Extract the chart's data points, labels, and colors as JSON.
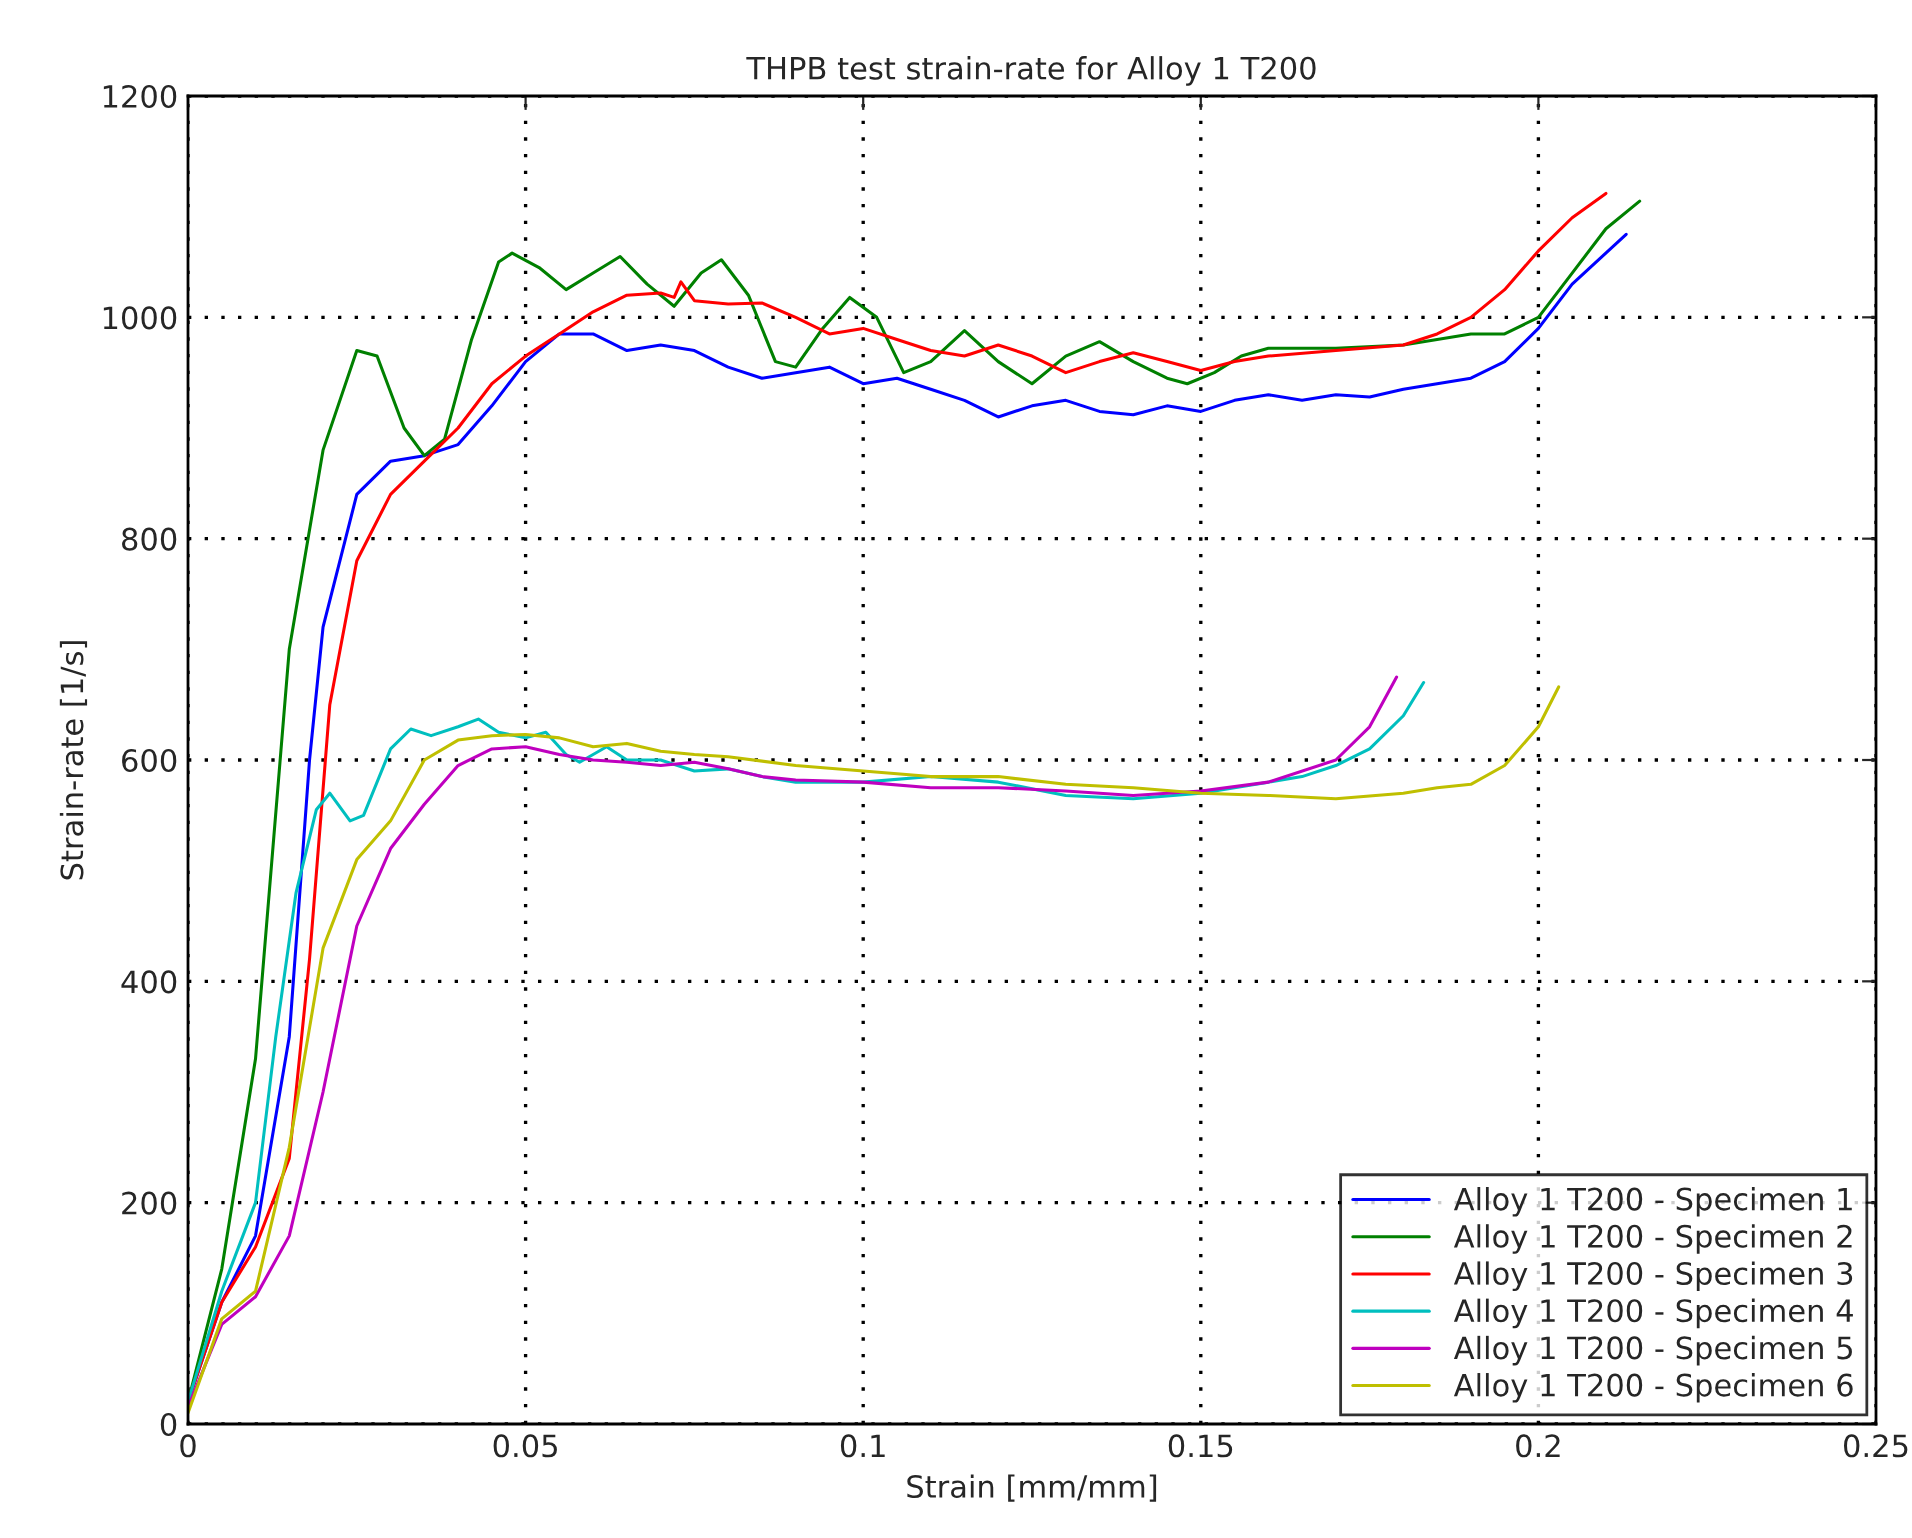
{
  "chart_data": {
    "type": "line",
    "title": "THPB test strain-rate for Alloy 1 T200",
    "xlabel": "Strain [mm/mm]",
    "ylabel": "Strain-rate [1/s]",
    "xlim": [
      0,
      0.25
    ],
    "xticks": [
      0,
      0.05,
      0.1,
      0.15,
      0.2,
      0.25
    ],
    "ylim": [
      0,
      1200
    ],
    "yticks": [
      0,
      200,
      400,
      600,
      800,
      1000,
      1200
    ],
    "grid": true,
    "legend": "bottom right",
    "line_style": "solid",
    "marker": "none",
    "series": [
      {
        "name": "Alloy 1 T200 - Specimen 1",
        "color": "#0000ff",
        "x": [
          0,
          0.005,
          0.01,
          0.015,
          0.018,
          0.02,
          0.025,
          0.03,
          0.035,
          0.04,
          0.045,
          0.05,
          0.055,
          0.06,
          0.065,
          0.07,
          0.075,
          0.08,
          0.085,
          0.09,
          0.095,
          0.1,
          0.105,
          0.11,
          0.115,
          0.12,
          0.125,
          0.13,
          0.135,
          0.14,
          0.145,
          0.15,
          0.155,
          0.16,
          0.165,
          0.17,
          0.175,
          0.18,
          0.185,
          0.19,
          0.195,
          0.2,
          0.205,
          0.213
        ],
        "values": [
          20,
          110,
          170,
          350,
          600,
          720,
          840,
          870,
          875,
          885,
          920,
          960,
          985,
          985,
          970,
          975,
          970,
          955,
          945,
          950,
          955,
          940,
          945,
          935,
          925,
          910,
          920,
          925,
          915,
          912,
          920,
          915,
          925,
          930,
          925,
          930,
          928,
          935,
          940,
          945,
          960,
          990,
          1030,
          1075
        ]
      },
      {
        "name": "Alloy 1 T200 - Specimen 2",
        "color": "#008000",
        "x": [
          0,
          0.005,
          0.01,
          0.015,
          0.02,
          0.025,
          0.028,
          0.032,
          0.035,
          0.038,
          0.042,
          0.046,
          0.048,
          0.052,
          0.056,
          0.06,
          0.064,
          0.068,
          0.072,
          0.076,
          0.079,
          0.083,
          0.087,
          0.09,
          0.094,
          0.098,
          0.102,
          0.106,
          0.11,
          0.115,
          0.12,
          0.125,
          0.13,
          0.135,
          0.14,
          0.145,
          0.148,
          0.152,
          0.156,
          0.16,
          0.17,
          0.18,
          0.185,
          0.19,
          0.195,
          0.2,
          0.205,
          0.21,
          0.215
        ],
        "values": [
          20,
          140,
          330,
          700,
          880,
          970,
          965,
          900,
          875,
          890,
          980,
          1050,
          1058,
          1045,
          1025,
          1040,
          1055,
          1030,
          1010,
          1040,
          1052,
          1020,
          960,
          955,
          990,
          1018,
          1000,
          950,
          960,
          988,
          960,
          940,
          965,
          978,
          960,
          945,
          940,
          950,
          965,
          972,
          972,
          975,
          980,
          985,
          985,
          1000,
          1040,
          1080,
          1105
        ]
      },
      {
        "name": "Alloy 1 T200 - Specimen 3",
        "color": "#ff0000",
        "x": [
          0,
          0.005,
          0.01,
          0.015,
          0.018,
          0.021,
          0.025,
          0.03,
          0.035,
          0.04,
          0.045,
          0.05,
          0.055,
          0.06,
          0.065,
          0.07,
          0.072,
          0.073,
          0.075,
          0.08,
          0.085,
          0.09,
          0.095,
          0.1,
          0.105,
          0.11,
          0.115,
          0.12,
          0.125,
          0.13,
          0.135,
          0.14,
          0.145,
          0.15,
          0.155,
          0.16,
          0.17,
          0.18,
          0.185,
          0.19,
          0.195,
          0.2,
          0.205,
          0.21
        ],
        "values": [
          20,
          110,
          160,
          240,
          420,
          650,
          780,
          840,
          870,
          900,
          940,
          965,
          985,
          1005,
          1020,
          1022,
          1018,
          1032,
          1015,
          1012,
          1013,
          1000,
          985,
          990,
          980,
          970,
          965,
          975,
          965,
          950,
          960,
          968,
          960,
          952,
          960,
          965,
          970,
          975,
          985,
          1000,
          1025,
          1060,
          1090,
          1112
        ]
      },
      {
        "name": "Alloy 1 T200 - Specimen 4",
        "color": "#00bfbf",
        "x": [
          0,
          0.005,
          0.01,
          0.013,
          0.016,
          0.019,
          0.021,
          0.024,
          0.026,
          0.03,
          0.033,
          0.036,
          0.04,
          0.043,
          0.046,
          0.05,
          0.053,
          0.056,
          0.058,
          0.062,
          0.065,
          0.07,
          0.075,
          0.08,
          0.085,
          0.09,
          0.1,
          0.11,
          0.12,
          0.13,
          0.14,
          0.15,
          0.16,
          0.165,
          0.17,
          0.175,
          0.18,
          0.183
        ],
        "values": [
          20,
          120,
          200,
          350,
          480,
          555,
          570,
          545,
          550,
          610,
          628,
          622,
          630,
          637,
          625,
          620,
          625,
          605,
          598,
          612,
          600,
          600,
          590,
          592,
          585,
          580,
          580,
          585,
          580,
          568,
          565,
          570,
          580,
          585,
          595,
          610,
          640,
          670
        ]
      },
      {
        "name": "Alloy 1 T200 - Specimen 5",
        "color": "#bf00bf",
        "x": [
          0,
          0.005,
          0.01,
          0.015,
          0.02,
          0.025,
          0.03,
          0.035,
          0.04,
          0.045,
          0.05,
          0.055,
          0.06,
          0.065,
          0.07,
          0.075,
          0.08,
          0.085,
          0.09,
          0.1,
          0.11,
          0.12,
          0.13,
          0.14,
          0.15,
          0.16,
          0.17,
          0.175,
          0.179
        ],
        "values": [
          15,
          90,
          115,
          170,
          300,
          450,
          520,
          560,
          595,
          610,
          612,
          605,
          600,
          598,
          595,
          598,
          592,
          585,
          582,
          580,
          575,
          575,
          572,
          568,
          572,
          580,
          600,
          630,
          675
        ]
      },
      {
        "name": "Alloy 1 T200 - Specimen 6",
        "color": "#bfbf00",
        "x": [
          0,
          0.005,
          0.01,
          0.015,
          0.02,
          0.025,
          0.03,
          0.035,
          0.04,
          0.045,
          0.05,
          0.055,
          0.06,
          0.065,
          0.07,
          0.075,
          0.08,
          0.09,
          0.1,
          0.11,
          0.12,
          0.13,
          0.14,
          0.15,
          0.16,
          0.17,
          0.18,
          0.185,
          0.19,
          0.195,
          0.2,
          0.203
        ],
        "values": [
          10,
          95,
          120,
          250,
          430,
          510,
          545,
          600,
          618,
          622,
          623,
          620,
          612,
          615,
          608,
          605,
          603,
          595,
          590,
          585,
          585,
          578,
          575,
          570,
          568,
          565,
          570,
          575,
          578,
          595,
          630,
          666
        ]
      }
    ]
  }
}
